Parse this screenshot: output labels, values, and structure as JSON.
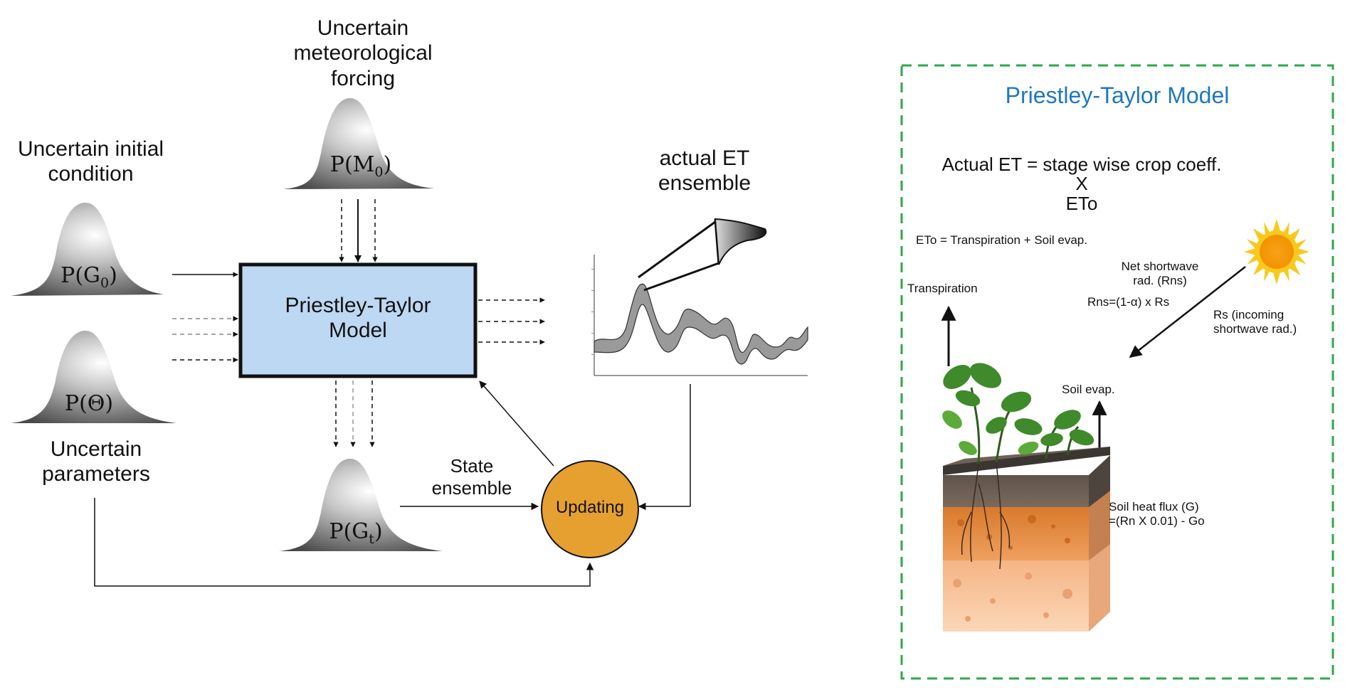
{
  "labels": {
    "initial_condition": [
      "Uncertain initial",
      "condition"
    ],
    "meteo": [
      "Uncertain",
      "meteorological",
      "forcing"
    ],
    "parameters": [
      "Uncertain",
      "parameters"
    ],
    "et_ensemble": [
      "actual ET",
      "ensemble"
    ],
    "state_ensemble": [
      "State",
      "ensemble"
    ]
  },
  "distributions": {
    "g0": {
      "prefix": "P(",
      "sym": "G",
      "sub": "0",
      "suffix": ")"
    },
    "m0": {
      "prefix": "P(",
      "sym": "M",
      "sub": "0",
      "suffix": ")"
    },
    "theta": {
      "prefix": "P(",
      "sym": "Θ",
      "sub": "",
      "suffix": ")"
    },
    "gt": {
      "prefix": "P(",
      "sym": "G",
      "sub": "t",
      "suffix": ")"
    }
  },
  "model_box": {
    "line1": "Priestley-Taylor",
    "line2": "Model"
  },
  "updating": "Updating",
  "inset": {
    "title": "Priestley-Taylor Model",
    "eq_line1": "Actual ET = stage wise crop coeff.",
    "eq_line2": "X",
    "eq_line3": "ETo",
    "eto_def": "ETo = Transpiration + Soil evap.",
    "transpiration": "Transpiration",
    "net_sw": [
      "Net shortwave",
      "rad. (Rns)"
    ],
    "rns_formula": "Rns=(1-α) x Rs",
    "rs": [
      "Rs (incoming",
      "shortwave rad.)"
    ],
    "soil_evap": "Soil evap.",
    "soil_heat": [
      "Soil heat flux (G)",
      "=(Rn X 0.01) - Go"
    ]
  },
  "colors": {
    "model_fill": "#bcd8f2",
    "updating_fill": "#e6a030",
    "inset_border": "#2ea84a",
    "inset_title": "#1f78c0"
  }
}
